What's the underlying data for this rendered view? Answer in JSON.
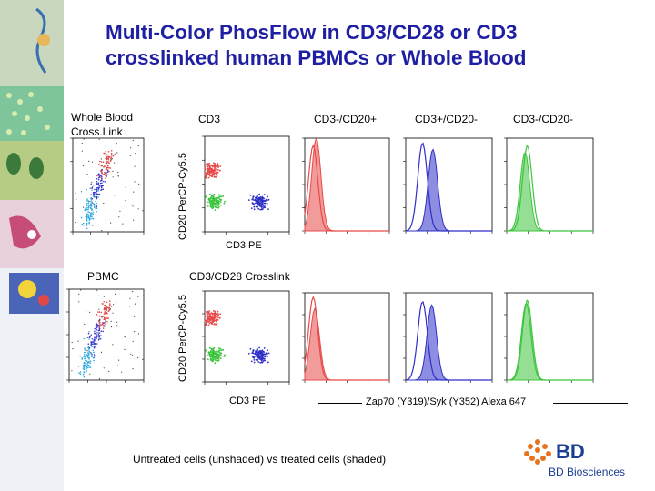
{
  "title": {
    "line1": "Multi-Color PhosFlow in CD3/CD28 or CD3",
    "line2": "crosslinked human PBMCs or Whole Blood"
  },
  "row_labels": {
    "whole_blood": "Whole Blood",
    "cross_link": "Cross.Link",
    "pbmc": "PBMC"
  },
  "column_headers": {
    "cd3": "CD3",
    "cd3neg_cd20pos": "CD3-/CD20+",
    "cd3pos_cd20neg": "CD3+/CD20-",
    "cd3neg_cd20neg": "CD3-/CD20-"
  },
  "axis_labels": {
    "cd20_y_top": "CD20 PerCP-Cy5.5",
    "cd20_y_bottom": "CD20 PerCP-Cy5.5",
    "cd3pe_top": "CD3 PE",
    "cd3pe_bottom": "CD3 PE",
    "crosslink_header": "CD3/CD28 Crosslink",
    "zap70": "Zap70 (Y319)/Syk (Y352) Alexa 647"
  },
  "footer": "Untreated cells (unshaded) vs treated cells (shaded)",
  "logo": {
    "word": "BD",
    "sub": "BD Biosciences"
  },
  "colors": {
    "title": "#1f1fa3",
    "red": "#e84848",
    "blue": "#2f2fc8",
    "green": "#3cc43c",
    "logo": "#1a3e94"
  },
  "chart_data": [
    {
      "type": "scatter",
      "title": "CD3",
      "row": "Whole Blood (CD3 Crosslink)",
      "xlabel": "CD3 PE",
      "ylabel": "CD20 PerCP-Cy5.5",
      "xscale": "log",
      "xlim": [
        1,
        10000
      ],
      "yscale": "log",
      "ylim": [
        1,
        10000
      ],
      "populations": [
        {
          "name": "CD3-/CD20+",
          "color": "red",
          "x_center": 2,
          "y_center": 400
        },
        {
          "name": "CD3-/CD20-",
          "color": "green",
          "x_center": 3,
          "y_center": 18
        },
        {
          "name": "CD3+/CD20-",
          "color": "blue",
          "x_center": 400,
          "y_center": 18
        }
      ]
    },
    {
      "type": "scatter",
      "title": "CD3/CD28 Crosslink",
      "row": "PBMC",
      "xlabel": "CD3 PE",
      "ylabel": "CD20 PerCP-Cy5.5",
      "xscale": "log",
      "xlim": [
        1,
        10000
      ],
      "yscale": "log",
      "ylim": [
        1,
        10000
      ],
      "populations": [
        {
          "name": "CD3-/CD20+",
          "color": "red",
          "x_center": 2,
          "y_center": 700
        },
        {
          "name": "CD3-/CD20-",
          "color": "green",
          "x_center": 3,
          "y_center": 15
        },
        {
          "name": "CD3+/CD20-",
          "color": "blue",
          "x_center": 400,
          "y_center": 15
        }
      ]
    },
    {
      "type": "area",
      "title": "CD3-/CD20+",
      "row": "Whole Blood",
      "xlabel": "Zap70 (Y319)/Syk (Y352) Alexa 647",
      "xscale": "log",
      "xlim": [
        1,
        10000
      ],
      "ylim": [
        0,
        100
      ],
      "series": [
        {
          "name": "Untreated",
          "shaded": false,
          "color": "red",
          "peak_x": 2.5,
          "peak_y": 92
        },
        {
          "name": "Treated",
          "shaded": true,
          "color": "red",
          "peak_x": 3.5,
          "peak_y": 100
        }
      ]
    },
    {
      "type": "area",
      "title": "CD3+/CD20-",
      "row": "Whole Blood",
      "xlabel": "Zap70 (Y319)/Syk (Y352) Alexa 647",
      "xscale": "log",
      "xlim": [
        1,
        10000
      ],
      "ylim": [
        0,
        100
      ],
      "series": [
        {
          "name": "Untreated",
          "shaded": false,
          "color": "blue",
          "peak_x": 6,
          "peak_y": 95
        },
        {
          "name": "Treated",
          "shaded": true,
          "color": "blue",
          "peak_x": 18,
          "peak_y": 88
        }
      ]
    },
    {
      "type": "area",
      "title": "CD3-/CD20-",
      "row": "Whole Blood",
      "xlabel": "Zap70 (Y319)/Syk (Y352) Alexa 647",
      "xscale": "log",
      "xlim": [
        1,
        10000
      ],
      "ylim": [
        0,
        100
      ],
      "series": [
        {
          "name": "Untreated",
          "shaded": false,
          "color": "green",
          "peak_x": 9,
          "peak_y": 92
        },
        {
          "name": "Treated",
          "shaded": true,
          "color": "green",
          "peak_x": 7,
          "peak_y": 85
        }
      ]
    },
    {
      "type": "area",
      "title": "CD3-/CD20+",
      "row": "PBMC",
      "xlabel": "Zap70 (Y319)/Syk (Y352) Alexa 647",
      "xscale": "log",
      "xlim": [
        1,
        10000
      ],
      "ylim": [
        0,
        100
      ],
      "series": [
        {
          "name": "Untreated",
          "shaded": false,
          "color": "red",
          "peak_x": 2.5,
          "peak_y": 95
        },
        {
          "name": "Treated",
          "shaded": true,
          "color": "red",
          "peak_x": 3,
          "peak_y": 82
        }
      ]
    },
    {
      "type": "area",
      "title": "CD3+/CD20-",
      "row": "PBMC",
      "xlabel": "Zap70 (Y319)/Syk (Y352) Alexa 647",
      "xscale": "log",
      "xlim": [
        1,
        10000
      ],
      "ylim": [
        0,
        100
      ],
      "series": [
        {
          "name": "Untreated",
          "shaded": false,
          "color": "blue",
          "peak_x": 6,
          "peak_y": 90
        },
        {
          "name": "Treated",
          "shaded": true,
          "color": "blue",
          "peak_x": 16,
          "peak_y": 86
        }
      ]
    },
    {
      "type": "area",
      "title": "CD3-/CD20-",
      "row": "PBMC",
      "xlabel": "Zap70 (Y319)/Syk (Y352) Alexa 647",
      "xscale": "log",
      "xlim": [
        1,
        10000
      ],
      "ylim": [
        0,
        100
      ],
      "series": [
        {
          "name": "Untreated",
          "shaded": false,
          "color": "green",
          "peak_x": 8,
          "peak_y": 88
        },
        {
          "name": "Treated",
          "shaded": true,
          "color": "green",
          "peak_x": 9,
          "peak_y": 92
        }
      ]
    }
  ]
}
